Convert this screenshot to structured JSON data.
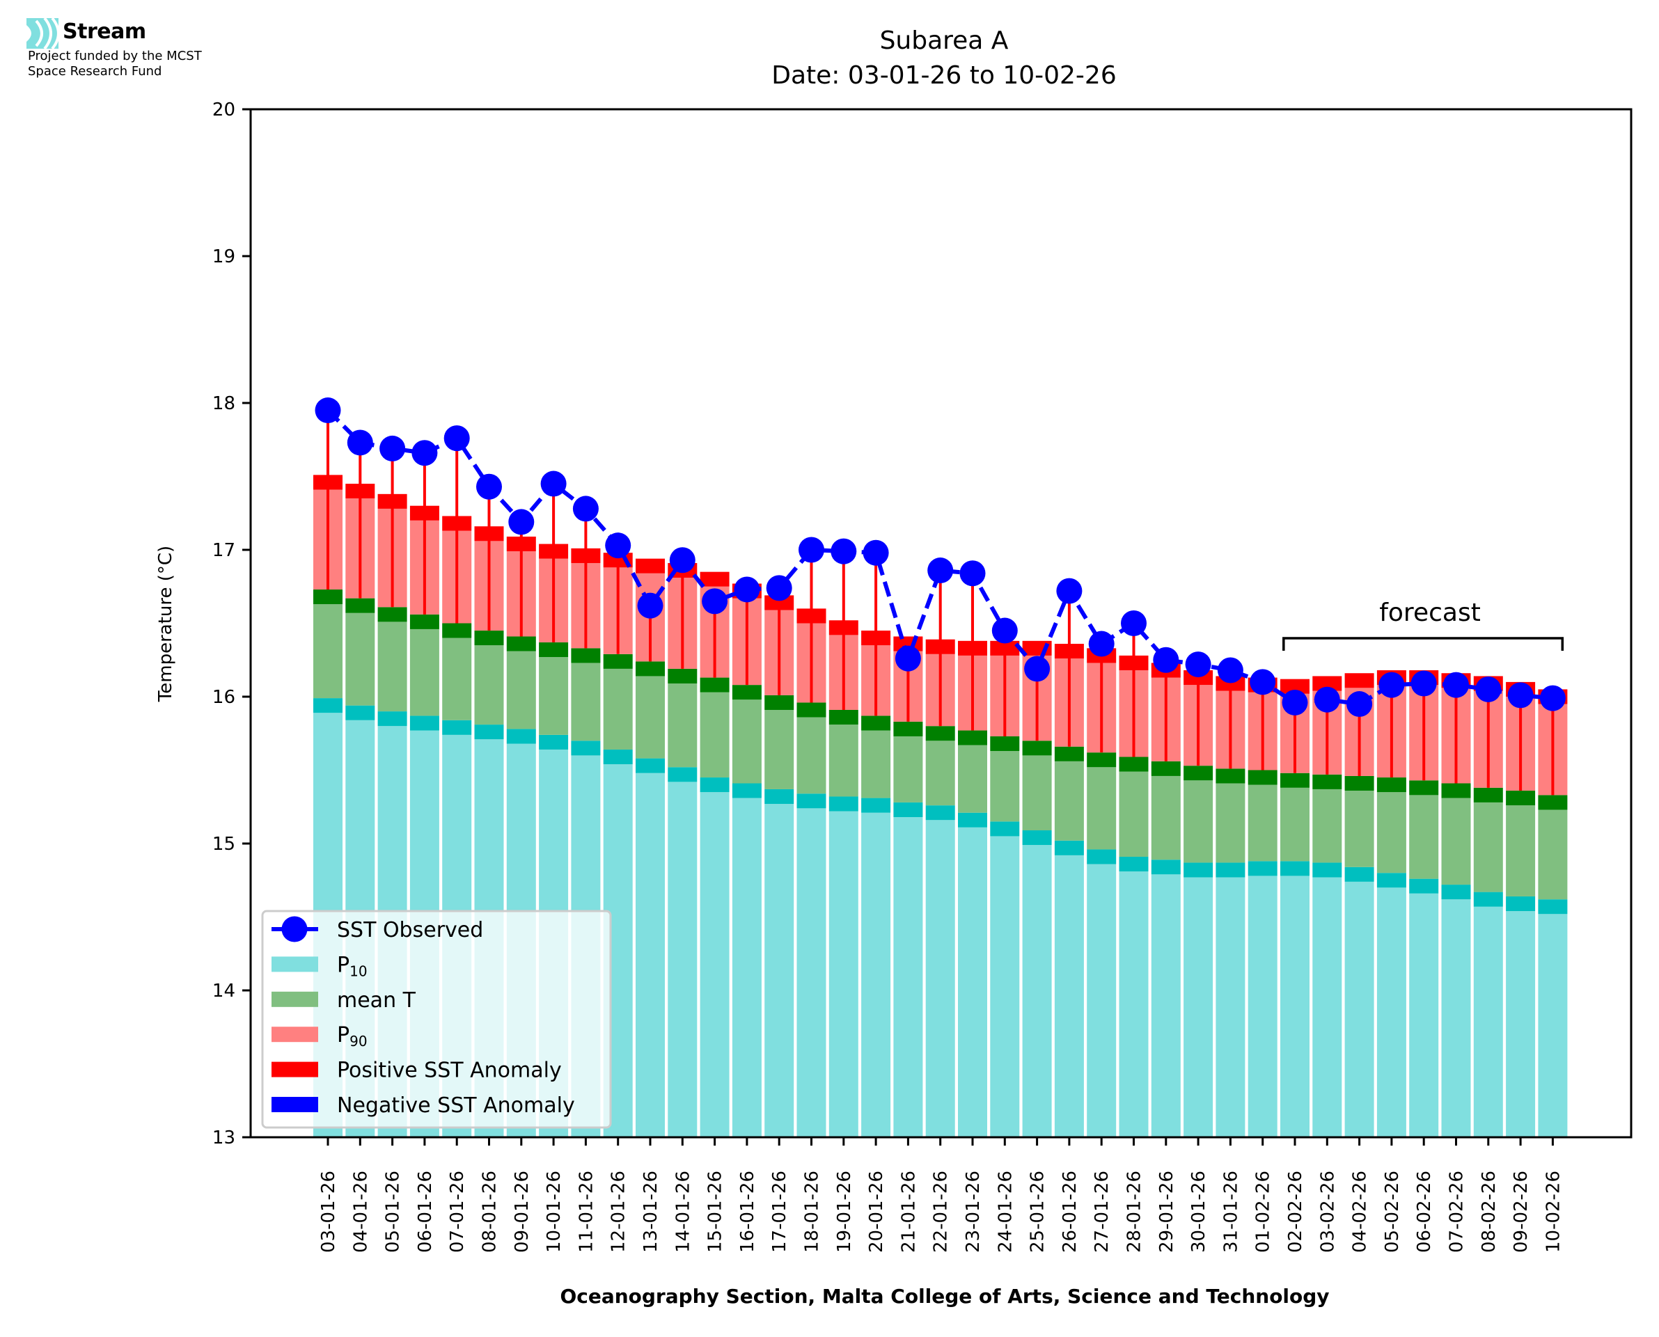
{
  "branding": {
    "name": "Stream",
    "funding_line1": "Project funded by the MCST",
    "funding_line2": "Space Research Fund",
    "logo_color": "#80dfdf"
  },
  "chart_data": {
    "type": "bar",
    "title_line1": "Subarea A",
    "title_line2": "Date: 03-01-26 to 10-02-26",
    "xlabel": "Oceanography Section, Malta College of Arts, Science and Technology",
    "ylabel": "Temperature (°C)",
    "ylim": [
      13,
      20
    ],
    "yticks": [
      13,
      14,
      15,
      16,
      17,
      18,
      19,
      20
    ],
    "grid": false,
    "legend_position": "lower-left",
    "annotation": {
      "text": "forecast",
      "from_category": "02-02-26",
      "to_category": "10-02-26"
    },
    "colors": {
      "p10": "#80dfdf",
      "p10_edge": "#00bfbf",
      "mean": "#80bf80",
      "mean_edge": "#008000",
      "p90": "#ff8080",
      "p90_edge": "#ff0000",
      "positive_anomaly": "#ff0000",
      "negative_anomaly": "#0000ff",
      "observed": "#0000ff"
    },
    "legend": [
      {
        "key": "observed",
        "label": "SST Observed",
        "sub": ""
      },
      {
        "key": "p10",
        "label": "P",
        "sub": "10"
      },
      {
        "key": "mean",
        "label": "mean T",
        "sub": ""
      },
      {
        "key": "p90",
        "label": "P",
        "sub": "90"
      },
      {
        "key": "positive_anomaly",
        "label": "Positive SST Anomaly",
        "sub": ""
      },
      {
        "key": "negative_anomaly",
        "label": "Negative SST Anomaly",
        "sub": ""
      }
    ],
    "categories": [
      "03-01-26",
      "04-01-26",
      "05-01-26",
      "06-01-26",
      "07-01-26",
      "08-01-26",
      "09-01-26",
      "10-01-26",
      "11-01-26",
      "12-01-26",
      "13-01-26",
      "14-01-26",
      "15-01-26",
      "16-01-26",
      "17-01-26",
      "18-01-26",
      "19-01-26",
      "20-01-26",
      "21-01-26",
      "22-01-26",
      "23-01-26",
      "24-01-26",
      "25-01-26",
      "26-01-26",
      "27-01-26",
      "28-01-26",
      "29-01-26",
      "30-01-26",
      "31-01-26",
      "01-02-26",
      "02-02-26",
      "03-02-26",
      "04-02-26",
      "05-02-26",
      "06-02-26",
      "07-02-26",
      "08-02-26",
      "09-02-26",
      "10-02-26"
    ],
    "series": [
      {
        "name": "P10",
        "values": [
          15.99,
          15.94,
          15.9,
          15.87,
          15.84,
          15.81,
          15.78,
          15.74,
          15.7,
          15.64,
          15.58,
          15.52,
          15.45,
          15.41,
          15.37,
          15.34,
          15.32,
          15.31,
          15.28,
          15.26,
          15.21,
          15.15,
          15.09,
          15.02,
          14.96,
          14.91,
          14.89,
          14.87,
          14.87,
          14.88,
          14.88,
          14.87,
          14.84,
          14.8,
          14.76,
          14.72,
          14.67,
          14.64,
          14.62
        ]
      },
      {
        "name": "mean T",
        "values": [
          16.73,
          16.67,
          16.61,
          16.56,
          16.5,
          16.45,
          16.41,
          16.37,
          16.33,
          16.29,
          16.24,
          16.19,
          16.13,
          16.08,
          16.01,
          15.96,
          15.91,
          15.87,
          15.83,
          15.8,
          15.77,
          15.73,
          15.7,
          15.66,
          15.62,
          15.59,
          15.56,
          15.53,
          15.51,
          15.5,
          15.48,
          15.47,
          15.46,
          15.45,
          15.43,
          15.41,
          15.38,
          15.36,
          15.33
        ]
      },
      {
        "name": "P90",
        "values": [
          17.51,
          17.45,
          17.38,
          17.3,
          17.23,
          17.16,
          17.09,
          17.04,
          17.01,
          16.98,
          16.94,
          16.91,
          16.85,
          16.77,
          16.69,
          16.6,
          16.52,
          16.45,
          16.41,
          16.39,
          16.38,
          16.38,
          16.38,
          16.36,
          16.33,
          16.28,
          16.23,
          16.18,
          16.14,
          16.13,
          16.12,
          16.14,
          16.16,
          16.18,
          16.18,
          16.16,
          16.14,
          16.1,
          16.05
        ]
      },
      {
        "name": "SST Observed",
        "values": [
          17.95,
          17.73,
          17.69,
          17.66,
          17.76,
          17.43,
          17.19,
          17.45,
          17.28,
          17.03,
          16.62,
          16.93,
          16.65,
          16.73,
          16.74,
          17.0,
          16.99,
          16.98,
          16.26,
          16.86,
          16.84,
          16.45,
          16.19,
          16.72,
          16.36,
          16.5,
          16.25,
          16.22,
          16.18,
          16.1,
          15.96,
          15.98,
          15.95,
          16.08,
          16.09,
          16.08,
          16.05,
          16.01,
          15.99
        ]
      }
    ]
  }
}
